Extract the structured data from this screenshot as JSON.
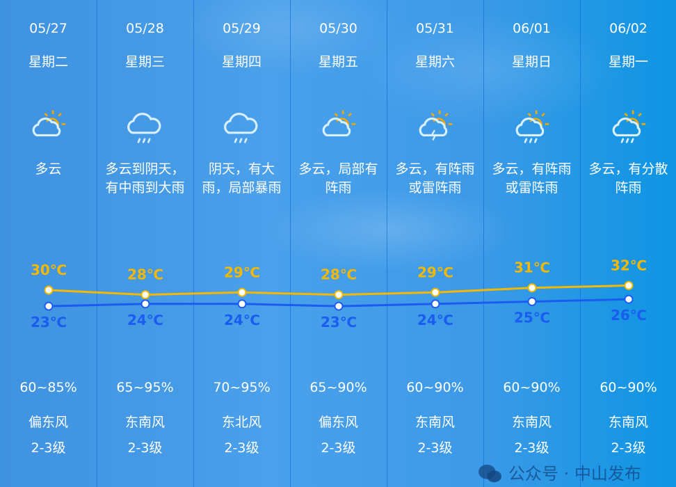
{
  "days": [
    {
      "date": "05/27",
      "weekday": "星期二",
      "icon": "partly-cloudy-icon",
      "desc": [
        "多云"
      ],
      "high": 30,
      "low": 23,
      "high_label": "30℃",
      "low_label": "23℃",
      "humidity": "60~85%",
      "wind": "偏东风",
      "level": "2-3级"
    },
    {
      "date": "05/28",
      "weekday": "星期三",
      "icon": "rain-icon",
      "desc": [
        "多云到阴天，",
        "有中雨到大雨"
      ],
      "high": 28,
      "low": 24,
      "high_label": "28℃",
      "low_label": "24℃",
      "humidity": "65~95%",
      "wind": "东南风",
      "level": "2-3级"
    },
    {
      "date": "05/29",
      "weekday": "星期四",
      "icon": "rain-icon",
      "desc": [
        "阴天，有大",
        "雨，局部暴雨"
      ],
      "high": 29,
      "low": 24,
      "high_label": "29℃",
      "low_label": "24℃",
      "humidity": "70~95%",
      "wind": "东北风",
      "level": "2-3级"
    },
    {
      "date": "05/30",
      "weekday": "星期五",
      "icon": "partly-cloudy-icon",
      "desc": [
        "多云，局部有",
        "阵雨"
      ],
      "high": 28,
      "low": 23,
      "high_label": "28℃",
      "low_label": "23℃",
      "humidity": "65~90%",
      "wind": "偏东风",
      "level": "2-3级"
    },
    {
      "date": "05/31",
      "weekday": "星期六",
      "icon": "thunder-shower-icon",
      "desc": [
        "多云，有阵雨",
        "或雷阵雨"
      ],
      "high": 29,
      "low": 24,
      "high_label": "29℃",
      "low_label": "24℃",
      "humidity": "60~90%",
      "wind": "东南风",
      "level": "2-3级"
    },
    {
      "date": "06/01",
      "weekday": "星期日",
      "icon": "sun-shower-icon",
      "desc": [
        "多云，有阵雨",
        "或雷阵雨"
      ],
      "high": 31,
      "low": 25,
      "high_label": "31℃",
      "low_label": "25℃",
      "humidity": "60~90%",
      "wind": "东南风",
      "level": "2-3级"
    },
    {
      "date": "06/02",
      "weekday": "星期一",
      "icon": "sun-shower-icon",
      "desc": [
        "多云，有分散",
        "阵雨"
      ],
      "high": 32,
      "low": 26,
      "high_label": "32℃",
      "low_label": "26℃",
      "humidity": "60~90%",
      "wind": "东南风",
      "level": "2-3级"
    }
  ],
  "colors": {
    "high": "#f5b800",
    "low": "#1a5cf0"
  },
  "watermark": "公众号 · 中山发布"
}
